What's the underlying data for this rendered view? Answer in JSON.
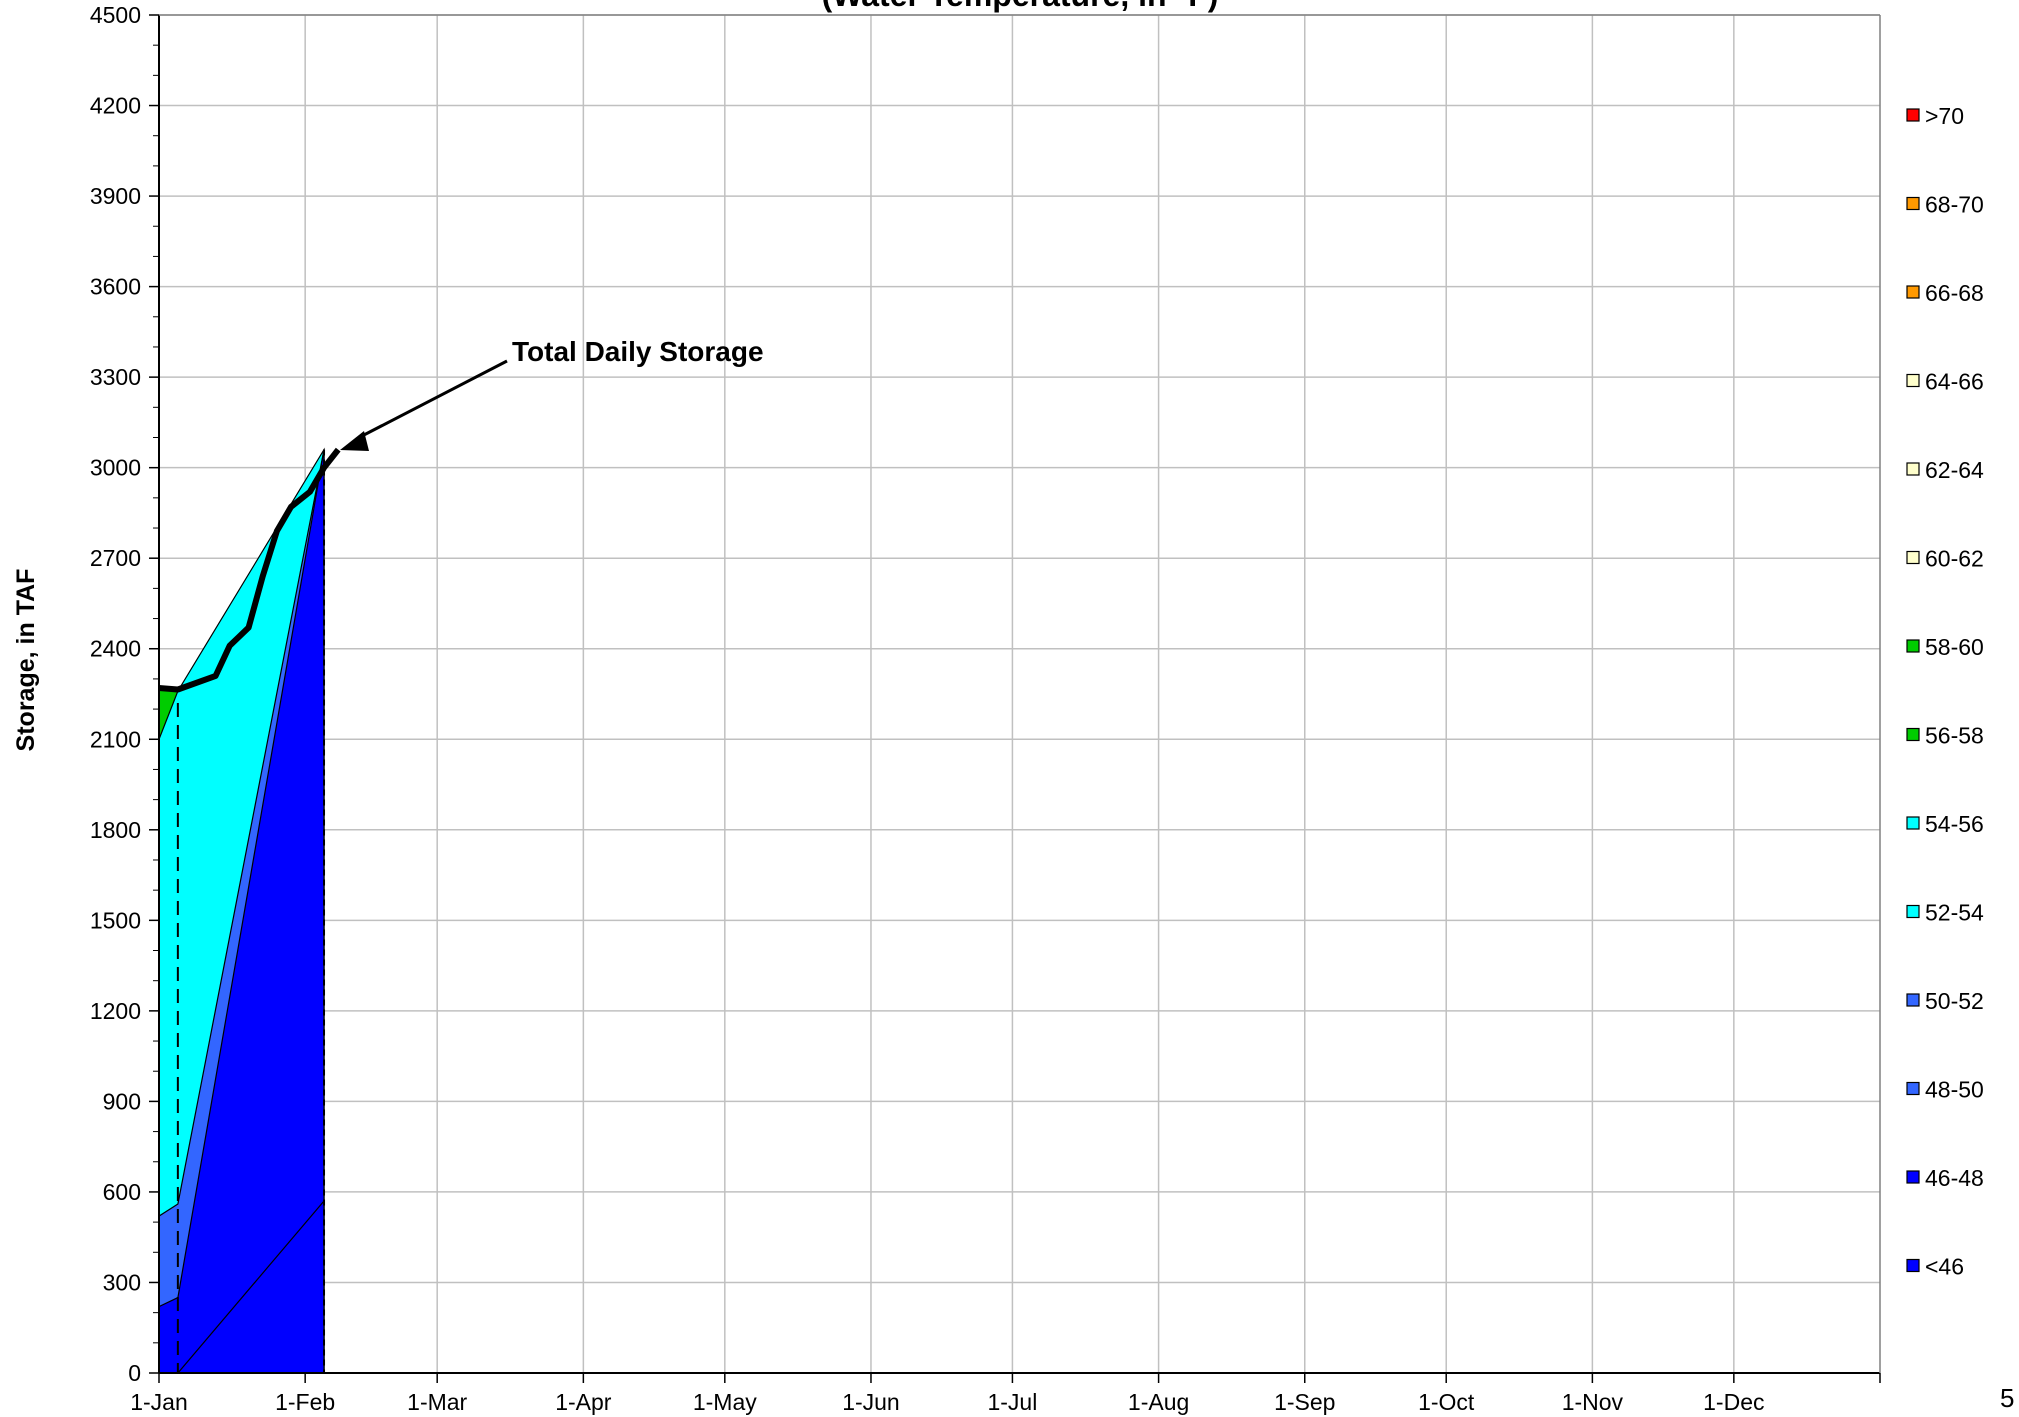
{
  "chart_data": {
    "type": "area",
    "title": "(Water Temperature, in °F)",
    "ylabel": "Storage, in TAF",
    "ylim": [
      0,
      4500
    ],
    "y_ticks": [
      "0",
      "300",
      "600",
      "900",
      "1200",
      "1500",
      "1800",
      "2100",
      "2400",
      "2700",
      "3000",
      "3300",
      "3600",
      "3900",
      "4200",
      "4500"
    ],
    "x_ticks": [
      "1-Jan",
      "1-Feb",
      "1-Mar",
      "1-Apr",
      "1-May",
      "1-Jun",
      "1-Jul",
      "1-Aug",
      "1-Sep",
      "1-Oct",
      "1-Nov",
      "1-Dec"
    ],
    "grid": true,
    "legend_position": "right",
    "legend": [
      {
        "label": ">70",
        "color": "#ff0000"
      },
      {
        "label": "68-70",
        "color": "#ff9900"
      },
      {
        "label": "66-68",
        "color": "#ff9900"
      },
      {
        "label": "64-66",
        "color": "#ffffcc"
      },
      {
        "label": "62-64",
        "color": "#ffffcc"
      },
      {
        "label": "60-62",
        "color": "#ffffcc"
      },
      {
        "label": "58-60",
        "color": "#00cc00"
      },
      {
        "label": "56-58",
        "color": "#00cc00"
      },
      {
        "label": "54-56",
        "color": "#00ffff"
      },
      {
        "label": "52-54",
        "color": "#00ffff"
      },
      {
        "label": "50-52",
        "color": "#3366ff"
      },
      {
        "label": "48-50",
        "color": "#3366ff"
      },
      {
        "label": "46-48",
        "color": "#0000ff"
      },
      {
        "label": "<46",
        "color": "#0000ff"
      }
    ],
    "series": [
      {
        "band": "<46",
        "color": "#0000ff",
        "points": [
          [
            1,
            0
          ],
          [
            5,
            0
          ],
          [
            36,
            570
          ]
        ]
      },
      {
        "band": "46-48",
        "color": "#0000ff",
        "points": [
          [
            1,
            220
          ],
          [
            5,
            250
          ],
          [
            36,
            3060
          ]
        ]
      },
      {
        "band": "48-50",
        "color": "#3366ff",
        "points": [
          [
            1,
            520
          ],
          [
            5,
            560
          ],
          [
            36,
            3060
          ]
        ]
      },
      {
        "band": "52-54",
        "color": "#00ffff",
        "points": [
          [
            1,
            2100
          ],
          [
            5,
            2260
          ],
          [
            36,
            3060
          ]
        ]
      },
      {
        "band": "56-58",
        "color": "#00cc00",
        "points": [
          [
            1,
            2270
          ],
          [
            5,
            2270
          ]
        ]
      }
    ],
    "total_storage": {
      "name": "Total Daily Storage",
      "points": [
        [
          1,
          2270
        ],
        [
          5,
          2265
        ],
        [
          13,
          2310
        ],
        [
          16,
          2410
        ],
        [
          20,
          2470
        ],
        [
          23,
          2640
        ],
        [
          26,
          2790
        ],
        [
          29,
          2870
        ],
        [
          33,
          2920
        ],
        [
          36,
          3000
        ],
        [
          39,
          3060
        ]
      ]
    },
    "annotation": "Total Daily Storage",
    "page_number": "5"
  }
}
